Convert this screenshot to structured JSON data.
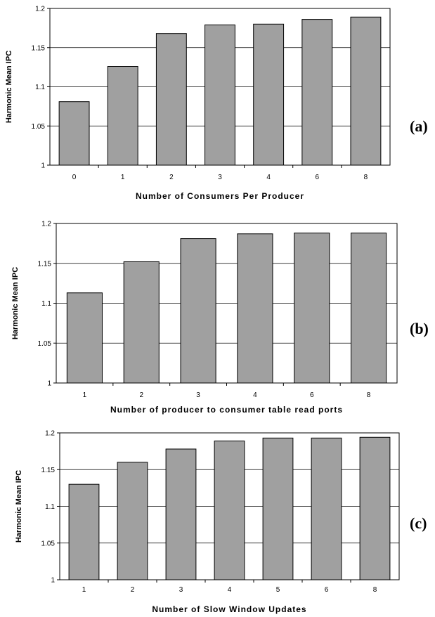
{
  "chart_data": [
    {
      "type": "bar",
      "panel_label": "(a)",
      "categories": [
        "0",
        "1",
        "2",
        "3",
        "4",
        "6",
        "8"
      ],
      "values": [
        1.081,
        1.126,
        1.168,
        1.179,
        1.18,
        1.186,
        1.189
      ],
      "xlabel": "Number of Consumers Per Producer",
      "ylabel": "Harmonic Mean IPC",
      "ylim": [
        1,
        1.2
      ],
      "yticks": [
        "1",
        "1.05",
        "1.1",
        "1.15",
        "1.2"
      ],
      "grid": true,
      "bar_color": "#a0a0a0"
    },
    {
      "type": "bar",
      "panel_label": "(b)",
      "categories": [
        "1",
        "2",
        "3",
        "4",
        "6",
        "8"
      ],
      "values": [
        1.113,
        1.152,
        1.181,
        1.187,
        1.188,
        1.188
      ],
      "xlabel": "Number of producer to consumer table read ports",
      "ylabel": "Harmonic Mean IPC",
      "ylim": [
        1,
        1.2
      ],
      "yticks": [
        "1",
        "1.05",
        "1.1",
        "1.15",
        "1.2"
      ],
      "grid": true,
      "bar_color": "#a0a0a0"
    },
    {
      "type": "bar",
      "panel_label": "(c)",
      "categories": [
        "1",
        "2",
        "3",
        "4",
        "5",
        "6",
        "8"
      ],
      "values": [
        1.13,
        1.16,
        1.178,
        1.189,
        1.193,
        1.193,
        1.194
      ],
      "xlabel": "Number of Slow Window Updates",
      "ylabel": "Harmonic Mean IPC",
      "ylim": [
        1,
        1.2
      ],
      "yticks": [
        "1",
        "1.05",
        "1.1",
        "1.15",
        "1.2"
      ],
      "grid": true,
      "bar_color": "#a0a0a0"
    }
  ]
}
